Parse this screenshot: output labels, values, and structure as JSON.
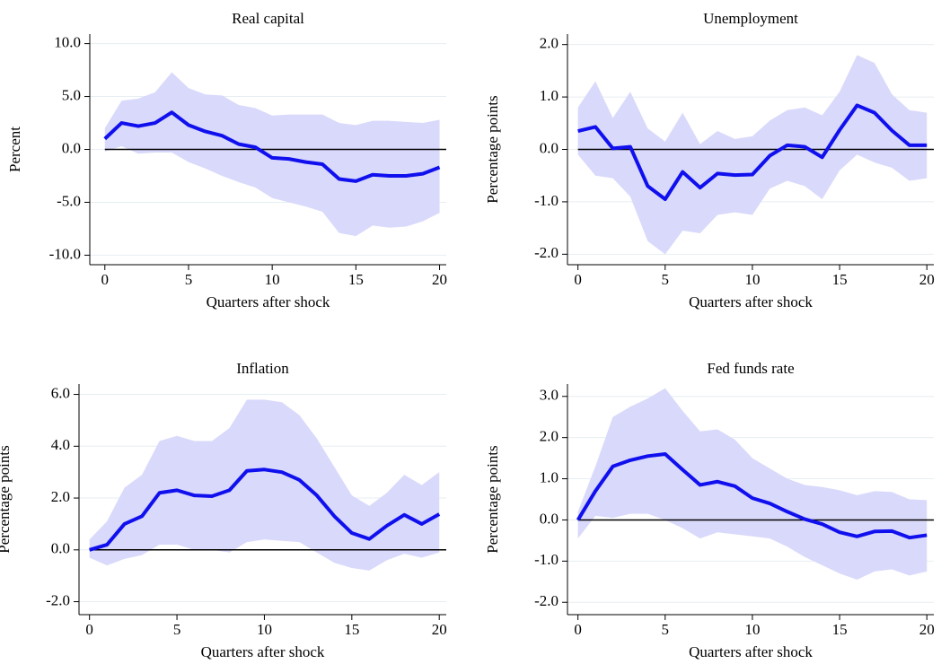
{
  "chart_data": [
    {
      "type": "line",
      "title": "Real capital",
      "x_label": "Quarters after shock",
      "y_label": "Percent",
      "x": [
        0,
        1,
        2,
        3,
        4,
        5,
        6,
        7,
        8,
        9,
        10,
        11,
        12,
        13,
        14,
        15,
        16,
        17,
        18,
        19,
        20
      ],
      "values": [
        1.0,
        2.5,
        2.2,
        2.5,
        3.5,
        2.3,
        1.7,
        1.3,
        0.5,
        0.2,
        -0.8,
        -0.9,
        -1.2,
        -1.4,
        -2.8,
        -3.0,
        -2.4,
        -2.5,
        -2.5,
        -2.3,
        -1.7
      ],
      "upper": [
        2.0,
        4.6,
        4.8,
        5.4,
        7.3,
        5.8,
        5.2,
        5.1,
        4.2,
        3.9,
        3.2,
        3.3,
        3.3,
        3.3,
        2.5,
        2.3,
        2.7,
        2.7,
        2.6,
        2.5,
        2.8
      ],
      "lower": [
        -0.2,
        0.3,
        -0.4,
        -0.3,
        -0.3,
        -1.2,
        -1.8,
        -2.5,
        -3.1,
        -3.6,
        -4.6,
        -5.0,
        -5.4,
        -5.9,
        -7.9,
        -8.2,
        -7.2,
        -7.4,
        -7.3,
        -6.8,
        -6.0
      ],
      "color": "#1010ee",
      "band_color": "#d9d9fb",
      "reference_line": 0,
      "grid": true,
      "xlim": [
        -0.9,
        20.4
      ],
      "xticks": [
        0,
        5,
        10,
        15,
        20
      ],
      "ylim": [
        -10.9,
        10.9
      ],
      "yticks": [
        {
          "value": -10,
          "label": "-10.0"
        },
        {
          "value": -5,
          "label": "-5.0"
        },
        {
          "value": 0,
          "label": "0.0"
        },
        {
          "value": 5,
          "label": "5.0"
        },
        {
          "value": 10,
          "label": "10.0"
        }
      ]
    },
    {
      "type": "line",
      "title": "Unemployment",
      "x_label": "Quarters after shock",
      "y_label": "Percentage points",
      "x": [
        0,
        1,
        2,
        3,
        4,
        5,
        6,
        7,
        8,
        9,
        10,
        11,
        12,
        13,
        14,
        15,
        16,
        17,
        18,
        19,
        20
      ],
      "values": [
        0.35,
        0.43,
        0.02,
        0.05,
        -0.7,
        -0.95,
        -0.43,
        -0.73,
        -0.46,
        -0.49,
        -0.48,
        -0.12,
        0.08,
        0.05,
        -0.15,
        0.37,
        0.84,
        0.7,
        0.36,
        0.08,
        0.08
      ],
      "upper": [
        0.8,
        1.3,
        0.6,
        1.1,
        0.4,
        0.15,
        0.7,
        0.1,
        0.35,
        0.2,
        0.25,
        0.55,
        0.75,
        0.8,
        0.65,
        1.1,
        1.8,
        1.65,
        1.05,
        0.75,
        0.7
      ],
      "lower": [
        -0.1,
        -0.5,
        -0.55,
        -0.9,
        -1.75,
        -2.0,
        -1.55,
        -1.6,
        -1.25,
        -1.2,
        -1.25,
        -0.75,
        -0.6,
        -0.7,
        -0.95,
        -0.4,
        -0.1,
        -0.25,
        -0.35,
        -0.6,
        -0.55
      ],
      "color": "#1010ee",
      "band_color": "#d9d9fb",
      "reference_line": 0,
      "grid": true,
      "xlim": [
        -0.6,
        20.4
      ],
      "xticks": [
        0,
        5,
        10,
        15,
        20
      ],
      "ylim": [
        -2.2,
        2.2
      ],
      "yticks": [
        {
          "value": -2,
          "label": "-2.0"
        },
        {
          "value": -1,
          "label": "-1.0"
        },
        {
          "value": 0,
          "label": "0.0"
        },
        {
          "value": 1,
          "label": "1.0"
        },
        {
          "value": 2,
          "label": "2.0"
        }
      ]
    },
    {
      "type": "line",
      "title": "Inflation",
      "x_label": "Quarters after shock",
      "y_label": "Percentage points",
      "x": [
        0,
        1,
        2,
        3,
        4,
        5,
        6,
        7,
        8,
        9,
        10,
        11,
        12,
        13,
        14,
        15,
        16,
        17,
        18,
        19,
        20
      ],
      "values": [
        0,
        0.2,
        1.0,
        1.3,
        2.2,
        2.3,
        2.1,
        2.07,
        2.3,
        3.05,
        3.1,
        3.0,
        2.7,
        2.1,
        1.3,
        0.65,
        0.42,
        0.93,
        1.35,
        1.0,
        1.38
      ],
      "upper": [
        0.4,
        1.1,
        2.4,
        2.9,
        4.2,
        4.4,
        4.2,
        4.2,
        4.7,
        5.8,
        5.8,
        5.7,
        5.2,
        4.3,
        3.2,
        2.1,
        1.7,
        2.2,
        2.9,
        2.5,
        3.0
      ],
      "lower": [
        -0.3,
        -0.6,
        -0.35,
        -0.2,
        0.2,
        0.2,
        0.0,
        0.0,
        -0.1,
        0.3,
        0.4,
        0.35,
        0.3,
        -0.1,
        -0.5,
        -0.7,
        -0.8,
        -0.4,
        -0.15,
        -0.3,
        -0.1
      ],
      "color": "#1010ee",
      "band_color": "#d9d9fb",
      "reference_line": 0,
      "grid": true,
      "xlim": [
        -0.6,
        20.4
      ],
      "xticks": [
        0,
        5,
        10,
        15,
        20
      ],
      "ylim": [
        -2.5,
        6.4
      ],
      "yticks": [
        {
          "value": -2,
          "label": "-2.0"
        },
        {
          "value": 0,
          "label": "0.0"
        },
        {
          "value": 2,
          "label": "2.0"
        },
        {
          "value": 4,
          "label": "4.0"
        },
        {
          "value": 6,
          "label": "6.0"
        }
      ]
    },
    {
      "type": "line",
      "title": "Fed funds rate",
      "x_label": "Quarters after shock",
      "y_label": "Percentage points",
      "x": [
        0,
        1,
        2,
        3,
        4,
        5,
        6,
        7,
        8,
        9,
        10,
        11,
        12,
        13,
        14,
        15,
        16,
        17,
        18,
        19,
        20
      ],
      "values": [
        0,
        0.7,
        1.3,
        1.45,
        1.55,
        1.6,
        1.22,
        0.85,
        0.93,
        0.82,
        0.53,
        0.4,
        0.2,
        0.02,
        -0.1,
        -0.3,
        -0.4,
        -0.28,
        -0.27,
        -0.43,
        -0.37
      ],
      "upper": [
        0.2,
        1.3,
        2.5,
        2.75,
        2.95,
        3.2,
        2.65,
        2.15,
        2.2,
        1.95,
        1.5,
        1.25,
        1.0,
        0.85,
        0.8,
        0.72,
        0.6,
        0.7,
        0.68,
        0.5,
        0.48
      ],
      "lower": [
        -0.45,
        0.1,
        0.05,
        0.15,
        0.15,
        0.0,
        -0.2,
        -0.45,
        -0.3,
        -0.35,
        -0.4,
        -0.45,
        -0.65,
        -0.9,
        -1.1,
        -1.3,
        -1.45,
        -1.25,
        -1.2,
        -1.35,
        -1.25
      ],
      "color": "#1010ee",
      "band_color": "#d9d9fb",
      "reference_line": 0,
      "grid": true,
      "xlim": [
        -0.6,
        20.4
      ],
      "xticks": [
        0,
        5,
        10,
        15,
        20
      ],
      "ylim": [
        -2.3,
        3.3
      ],
      "yticks": [
        {
          "value": -2,
          "label": "-2.0"
        },
        {
          "value": -1,
          "label": "-1.0"
        },
        {
          "value": 0,
          "label": "0.0"
        },
        {
          "value": 1,
          "label": "1.0"
        },
        {
          "value": 2,
          "label": "2.0"
        },
        {
          "value": 3,
          "label": "3.0"
        }
      ]
    }
  ]
}
